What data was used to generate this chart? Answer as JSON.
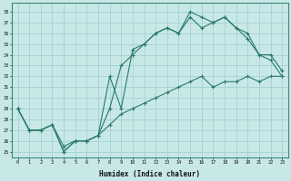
{
  "xlabel": "Humidex (Indice chaleur)",
  "bg_color": "#c8e8e8",
  "grid_color": "#9ecece",
  "line_color": "#2a7a6a",
  "xlim": [
    -0.5,
    23.5
  ],
  "ylim": [
    24.5,
    38.8
  ],
  "yticks": [
    25,
    26,
    27,
    28,
    29,
    30,
    31,
    32,
    33,
    34,
    35,
    36,
    37,
    38
  ],
  "xticks": [
    0,
    1,
    2,
    3,
    4,
    5,
    6,
    7,
    8,
    9,
    10,
    11,
    12,
    13,
    14,
    15,
    16,
    17,
    18,
    19,
    20,
    21,
    22,
    23
  ],
  "line1_x": [
    0,
    1,
    2,
    3,
    4,
    5,
    6,
    7,
    8,
    9,
    10,
    11,
    12,
    13,
    14,
    15,
    16,
    17,
    18,
    19,
    20,
    21,
    22,
    23
  ],
  "line1_y": [
    29.0,
    27.0,
    27.0,
    27.5,
    25.0,
    26.0,
    26.0,
    26.5,
    29.0,
    33.0,
    34.0,
    35.0,
    36.0,
    36.5,
    36.0,
    38.0,
    37.5,
    37.0,
    37.5,
    36.5,
    36.0,
    34.0,
    34.0,
    32.5
  ],
  "line2_x": [
    0,
    1,
    2,
    3,
    4,
    5,
    6,
    7,
    8,
    9,
    10,
    11,
    12,
    13,
    14,
    15,
    16,
    17,
    18,
    19,
    20,
    21,
    22,
    23
  ],
  "line2_y": [
    29.0,
    27.0,
    27.0,
    27.5,
    25.0,
    26.0,
    26.0,
    26.5,
    32.0,
    29.0,
    34.5,
    35.0,
    36.0,
    36.5,
    36.0,
    37.5,
    36.5,
    37.0,
    37.5,
    36.5,
    35.5,
    34.0,
    33.5,
    32.0
  ],
  "line3_x": [
    0,
    1,
    2,
    3,
    4,
    5,
    6,
    7,
    8,
    9,
    10,
    11,
    12,
    13,
    14,
    15,
    16,
    17,
    18,
    19,
    20,
    21,
    22,
    23
  ],
  "line3_y": [
    29.0,
    27.0,
    27.0,
    27.5,
    25.5,
    26.0,
    26.0,
    26.5,
    27.5,
    28.5,
    29.0,
    29.5,
    30.0,
    30.5,
    31.0,
    31.5,
    32.0,
    31.0,
    31.5,
    31.5,
    32.0,
    31.5,
    32.0,
    32.0
  ]
}
